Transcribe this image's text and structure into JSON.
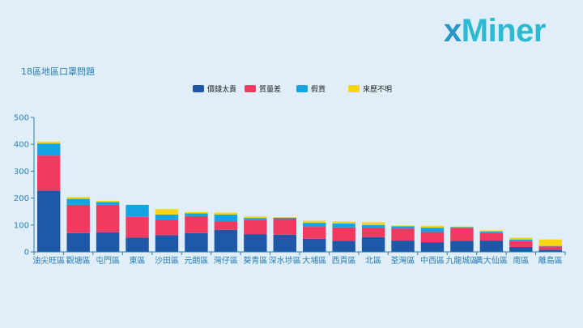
{
  "logo": {
    "x": "x",
    "rest": "Miner"
  },
  "chart_data": {
    "type": "bar",
    "stacked": true,
    "title": "18區地區口罩問題",
    "xlabel": "",
    "ylabel": "",
    "ylim": [
      0,
      500
    ],
    "yticks": [
      0,
      100,
      200,
      300,
      400,
      500
    ],
    "grid": false,
    "legend_position": "top-center",
    "categories": [
      "油尖旺區",
      "觀塘區",
      "屯門區",
      "東區",
      "沙田區",
      "元朗區",
      "灣仔區",
      "葵青區",
      "深水埗區",
      "大埔區",
      "西貢區",
      "北區",
      "荃灣區",
      "中西區",
      "九龍城區",
      "黃大仙區",
      "南區",
      "離島區"
    ],
    "series": [
      {
        "name": "價錢太貴",
        "color": "#1f58a6",
        "values": [
          228,
          70,
          73,
          53,
          62,
          70,
          82,
          66,
          64,
          49,
          41,
          55,
          42,
          36,
          41,
          42,
          18,
          8
        ]
      },
      {
        "name": "質量差",
        "color": "#f03a5f",
        "values": [
          130,
          105,
          102,
          77,
          57,
          63,
          32,
          52,
          58,
          44,
          50,
          35,
          45,
          38,
          47,
          28,
          22,
          12
        ]
      },
      {
        "name": "假貨",
        "color": "#14a3e3",
        "values": [
          45,
          22,
          10,
          45,
          20,
          10,
          25,
          8,
          5,
          15,
          15,
          10,
          8,
          16,
          4,
          6,
          6,
          2
        ]
      },
      {
        "name": "來歷不明",
        "color": "#f7d511",
        "values": [
          7,
          7,
          5,
          0,
          20,
          5,
          7,
          6,
          2,
          8,
          7,
          10,
          3,
          7,
          2,
          4,
          7,
          24
        ]
      }
    ]
  }
}
